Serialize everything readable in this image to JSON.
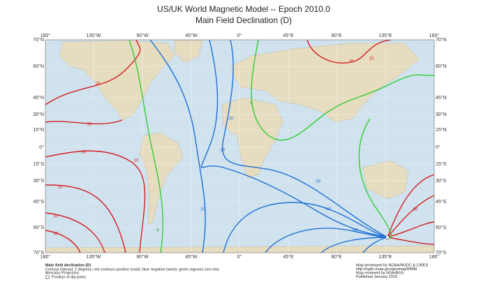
{
  "header": {
    "title": "US/UK World Magnetic Model -- Epoch 2010.0",
    "subtitle": "Main Field Declination (D)"
  },
  "map": {
    "longitude_labels": [
      "180°",
      "135°W",
      "90°W",
      "45°W",
      "0°",
      "45°E",
      "90°E",
      "135°E",
      "180°"
    ],
    "latitude_labels": [
      "70°N",
      "60°N",
      "45°N",
      "30°N",
      "15°N",
      "0°",
      "15°S",
      "30°S",
      "45°S",
      "60°S",
      "70°S"
    ],
    "contour_labels": [
      "20",
      "10",
      "10",
      "20",
      "30",
      "40",
      "20",
      "10",
      "0",
      "-10",
      "-20",
      "-30",
      "-40",
      "10",
      "0",
      "-20",
      "-60",
      "60"
    ]
  },
  "footer": {
    "left": [
      "Main field declination (D)",
      "Contour interval: 2 degrees, red contours positive (east); blue negative (west); green (agonic) zero line.",
      "Mercator Projection.",
      "Position of dip poles"
    ],
    "right": [
      "Map developed by NOAA/NGDC & CIRES",
      "http://ngdc.noaa.gov/geomag/WMM",
      "Map reviewed by NGA/BGS",
      "Published January 2010"
    ]
  }
}
